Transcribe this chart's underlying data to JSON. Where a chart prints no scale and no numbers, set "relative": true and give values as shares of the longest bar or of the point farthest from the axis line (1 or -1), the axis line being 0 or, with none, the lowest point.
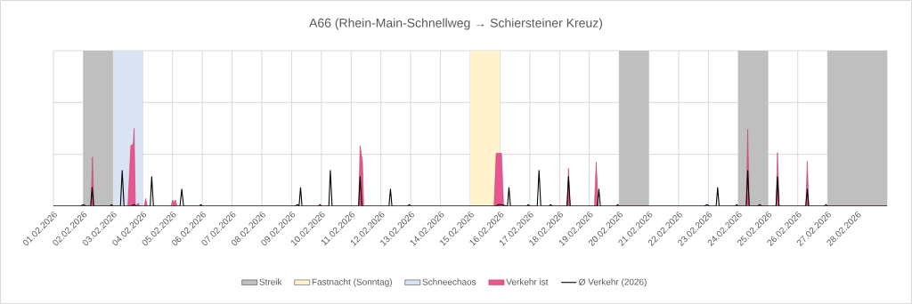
{
  "chart_data": {
    "type": "area",
    "title": "A66 (Rhein-Main-Schnellweg → Schiersteiner Kreuz)",
    "relative": true,
    "grid": true,
    "legend": "bottom",
    "xlim": [
      "2026-02-01",
      "2026-03-01"
    ],
    "xticks": [
      {
        "value": "2026-02-01",
        "label": "01.02.2026"
      },
      {
        "value": "2026-02-02",
        "label": "02.02.2026"
      },
      {
        "value": "2026-02-03",
        "label": "03.02.2026"
      },
      {
        "value": "2026-02-04",
        "label": "04.02.2026"
      },
      {
        "value": "2026-02-05",
        "label": "05.02.2026"
      },
      {
        "value": "2026-02-06",
        "label": "06.02.2026"
      },
      {
        "value": "2026-02-07",
        "label": "07.02.2026"
      },
      {
        "value": "2026-02-08",
        "label": "08.02.2026"
      },
      {
        "value": "2026-02-09",
        "label": "09.02.2026"
      },
      {
        "value": "2026-02-10",
        "label": "10.02.2026"
      },
      {
        "value": "2026-02-11",
        "label": "11.02.2026"
      },
      {
        "value": "2026-02-12",
        "label": "12.02.2026"
      },
      {
        "value": "2026-02-13",
        "label": "13.02.2026"
      },
      {
        "value": "2026-02-14",
        "label": "14.02.2026"
      },
      {
        "value": "2026-02-15",
        "label": "15.02.2026"
      },
      {
        "value": "2026-02-16",
        "label": "16.02.2026"
      },
      {
        "value": "2026-02-17",
        "label": "17.02.2026"
      },
      {
        "value": "2026-02-18",
        "label": "18.02.2026"
      },
      {
        "value": "2026-02-19",
        "label": "19.02.2026"
      },
      {
        "value": "2026-02-20",
        "label": "20.02.2026"
      },
      {
        "value": "2026-02-21",
        "label": "21.02.2026"
      },
      {
        "value": "2026-02-22",
        "label": "22.02.2026"
      },
      {
        "value": "2026-02-23",
        "label": "23.02.2026"
      },
      {
        "value": "2026-02-24",
        "label": "24.02.2026"
      },
      {
        "value": "2026-02-25",
        "label": "25.02.2026"
      },
      {
        "value": "2026-02-26",
        "label": "26.02.2026"
      },
      {
        "value": "2026-02-27",
        "label": "27.02.2026"
      },
      {
        "value": "2026-02-28",
        "label": "28.02.2026"
      },
      {
        "value": "2026-03-01",
        "label": null
      }
    ],
    "bands": [
      {
        "axis": "x",
        "from": "2026-02-02",
        "to": "2026-02-03",
        "label": "Streik",
        "color": "#bfbfbf"
      },
      {
        "axis": "x",
        "from": "2026-02-15",
        "to": "2026-02-16",
        "label": "Fastnacht (Sonntag)",
        "color": "#fff2cc"
      },
      {
        "axis": "x",
        "from": "2026-02-03",
        "to": "2026-02-04",
        "label": "Schneechaos",
        "color": "#dae3f3"
      },
      {
        "axis": "x",
        "from": "2026-02-20",
        "to": "2026-02-21",
        "color": "#bfbfbf"
      },
      {
        "axis": "x",
        "from": "2026-02-24",
        "to": "2026-02-25",
        "color": "#bfbfbf"
      },
      {
        "axis": "x",
        "from": "2026-02-27",
        "to": "2026-03-01",
        "color": "#bfbfbf"
      }
    ],
    "series": [
      {
        "name": "Verkehr ist",
        "color": "#e9558e",
        "x": [
          "2026-02-01T00:00",
          "2026-02-02T06:14",
          "2026-02-02T07:26",
          "2026-02-02T08:38",
          "2026-02-03T12:00",
          "2026-02-03T14:24",
          "2026-02-03T16:19",
          "2026-02-03T17:02",
          "2026-02-03T18:00",
          "2026-02-03T20:24",
          "2026-02-03T21:36",
          "2026-02-04T01:12",
          "2026-02-04T02:24",
          "2026-02-04T03:36",
          "2026-02-04T22:48",
          "2026-02-05T00:00",
          "2026-02-05T01:12",
          "2026-02-05T02:24",
          "2026-02-05T03:36",
          "2026-02-11T06:00",
          "2026-02-11T07:12",
          "2026-02-11T09:07",
          "2026-02-11T10:05",
          "2026-02-15T19:12",
          "2026-02-15T20:53",
          "2026-02-16T01:12",
          "2026-02-16T02:53",
          "2026-02-18T06:00",
          "2026-02-18T07:12",
          "2026-02-18T08:24",
          "2026-02-19T04:05",
          "2026-02-19T05:31",
          "2026-02-19T07:12",
          "2026-02-24T06:29",
          "2026-02-24T07:41",
          "2026-02-24T08:53",
          "2026-02-25T06:29",
          "2026-02-25T07:41",
          "2026-02-25T09:07",
          "2026-02-26T06:29",
          "2026-02-26T07:41",
          "2026-02-26T08:53",
          "2026-03-01T00:00"
        ],
        "values": [
          0,
          0,
          0.63,
          0,
          0,
          0.78,
          0.8,
          1.0,
          0,
          0.04,
          0,
          0,
          0.1,
          0,
          0,
          0.08,
          0.05,
          0.08,
          0,
          0,
          0.78,
          0.57,
          0,
          0,
          0.68,
          0.68,
          0,
          0,
          0.49,
          0,
          0,
          0.57,
          0,
          0,
          0.99,
          0,
          0,
          0.69,
          0,
          0,
          0.58,
          0,
          0
        ]
      },
      {
        "name": "Ø Verkehr (2026)",
        "type": "line",
        "color": "#000000",
        "x": [
          "2026-02-01T00:00",
          "2026-02-01T21:36",
          "2026-02-02T00:00",
          "2026-02-02T02:24",
          "2026-02-02T06:00",
          "2026-02-02T07:12",
          "2026-02-02T08:24",
          "2026-02-02T21:36",
          "2026-02-02T22:48",
          "2026-02-03T00:00",
          "2026-02-03T06:00",
          "2026-02-03T07:26",
          "2026-02-03T08:53",
          "2026-02-03T14:24",
          "2026-02-03T16:48",
          "2026-02-03T19:12",
          "2026-02-04T06:00",
          "2026-02-04T07:12",
          "2026-02-04T08:38",
          "2026-02-05T06:00",
          "2026-02-05T07:26",
          "2026-02-05T08:53",
          "2026-02-05T21:36",
          "2026-02-05T22:48",
          "2026-02-06T00:00",
          "2026-02-09T02:24",
          "2026-02-09T04:48",
          "2026-02-09T06:00",
          "2026-02-09T07:12",
          "2026-02-09T08:24",
          "2026-02-09T21:36",
          "2026-02-09T22:48",
          "2026-02-10T00:00",
          "2026-02-10T06:00",
          "2026-02-10T07:12",
          "2026-02-10T08:38",
          "2026-02-11T06:00",
          "2026-02-11T07:12",
          "2026-02-11T08:38",
          "2026-02-12T06:29",
          "2026-02-12T07:41",
          "2026-02-12T08:53",
          "2026-02-12T21:36",
          "2026-02-12T22:48",
          "2026-02-13T00:00",
          "2026-02-15T20:24",
          "2026-02-15T22:48",
          "2026-02-16T01:12",
          "2026-02-16T06:00",
          "2026-02-16T07:12",
          "2026-02-16T08:24",
          "2026-02-16T21:36",
          "2026-02-16T22:48",
          "2026-02-17T00:00",
          "2026-02-17T06:00",
          "2026-02-17T07:26",
          "2026-02-17T08:53",
          "2026-02-17T15:36",
          "2026-02-17T16:48",
          "2026-02-17T18:00",
          "2026-02-18T06:00",
          "2026-02-18T07:12",
          "2026-02-18T08:38",
          "2026-02-19T06:29",
          "2026-02-19T07:41",
          "2026-02-19T08:53",
          "2026-02-19T21:36",
          "2026-02-19T22:48",
          "2026-02-20T00:00",
          "2026-02-22T20:24",
          "2026-02-22T22:48",
          "2026-02-23T01:12",
          "2026-02-23T06:14",
          "2026-02-23T07:26",
          "2026-02-23T08:38",
          "2026-02-23T21:36",
          "2026-02-23T22:48",
          "2026-02-24T00:00",
          "2026-02-24T06:29",
          "2026-02-24T07:41",
          "2026-02-24T08:53",
          "2026-02-24T15:36",
          "2026-02-24T17:17",
          "2026-02-24T19:12",
          "2026-02-25T06:29",
          "2026-02-25T07:41",
          "2026-02-25T08:53",
          "2026-02-26T06:29",
          "2026-02-26T07:41",
          "2026-02-26T08:53",
          "2026-02-26T21:36",
          "2026-02-26T22:48",
          "2026-02-27T00:00",
          "2026-03-01T00:00"
        ],
        "values": [
          0,
          0,
          0.02,
          0,
          0,
          0.24,
          0,
          0,
          0.02,
          0,
          0,
          0.46,
          0,
          0,
          0.02,
          0,
          0,
          0.38,
          0,
          0,
          0.22,
          0,
          0,
          0.02,
          0,
          0,
          0.02,
          0,
          0.24,
          0,
          0,
          0.02,
          0,
          0,
          0.46,
          0,
          0,
          0.38,
          0,
          0,
          0.22,
          0,
          0,
          0.02,
          0,
          0,
          0.02,
          0.02,
          0,
          0.24,
          0,
          0,
          0.02,
          0,
          0,
          0.46,
          0,
          0,
          0.02,
          0,
          0,
          0.38,
          0,
          0,
          0.22,
          0,
          0,
          0.02,
          0,
          0,
          0.02,
          0,
          0,
          0.24,
          0,
          0,
          0.02,
          0,
          0,
          0.46,
          0,
          0,
          0.02,
          0,
          0,
          0.38,
          0,
          0,
          0.22,
          0,
          0,
          0.02,
          0,
          0
        ]
      }
    ]
  }
}
